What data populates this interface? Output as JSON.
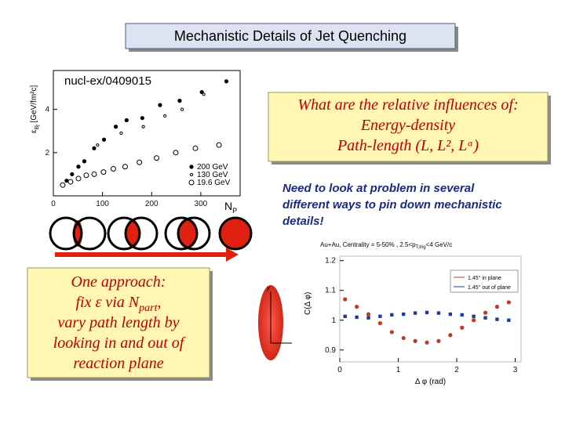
{
  "title": "Mechanistic Details of Jet Quenching",
  "question": {
    "lines": [
      "What are the relative influences of:",
      "Energy-density",
      "Path-length (L, L², Lᵅ)"
    ]
  },
  "note": {
    "lines": [
      "Need to look at problem in several",
      "different ways to pin down mechanistic",
      "details!"
    ]
  },
  "approach": {
    "heading": "One approach:",
    "fix": {
      "text": "fix ε via N",
      "sub": "part",
      "end": ","
    },
    "lines": [
      "vary path length by",
      "looking in and out of",
      "reaction plane"
    ]
  },
  "plots": [
    {
      "type": "scatter",
      "annotation": "nucl-ex/0409015",
      "y_label": {
        "symbol": "ε",
        "sub": "Bj",
        "unit": " [GeV/fm²c]"
      },
      "x_label": {
        "symbol": "N",
        "sub": "P"
      },
      "xlim": [
        0,
        380
      ],
      "ylim": [
        0,
        5.8
      ],
      "xticks": [
        0,
        100,
        200,
        300
      ],
      "yticks": [
        2,
        4
      ],
      "series": [
        {
          "name": "200 GeV",
          "color": "#000000",
          "marker": "filled",
          "x": [
            27,
            38,
            51,
            63,
            83,
            103,
            127,
            149,
            181,
            217,
            257,
            302,
            352
          ],
          "values": [
            0.7,
            1.0,
            1.35,
            1.6,
            2.2,
            2.6,
            3.2,
            3.5,
            3.6,
            4.2,
            4.4,
            4.8,
            5.3
          ]
        },
        {
          "name": "130 GeV",
          "color": "#000000",
          "marker": "small",
          "x": [
            90,
            138,
            183,
            227,
            262,
            306
          ],
          "values": [
            2.35,
            2.9,
            3.2,
            3.7,
            4.0,
            4.7
          ]
        },
        {
          "name": "19.6 GeV",
          "color": "#000000",
          "marker": "open",
          "x": [
            19,
            35,
            51,
            67,
            83,
            102,
            122,
            146,
            175,
            210,
            249,
            289,
            337
          ],
          "values": [
            0.5,
            0.65,
            0.8,
            0.95,
            1.0,
            1.1,
            1.25,
            1.35,
            1.55,
            1.75,
            2.0,
            2.2,
            2.35
          ]
        }
      ]
    },
    {
      "type": "scatter",
      "title": {
        "text": "Au+Au, Centrality = 5-50% , 2.5<p",
        "sub": "T,trig",
        "end": "<4 GeV/c"
      },
      "y_label": "C(Δ φ)",
      "x_label": "Δ φ (rad)",
      "xlim": [
        0,
        3.1
      ],
      "ylim": [
        0.86,
        1.215
      ],
      "xticks": [
        0,
        1,
        2,
        3
      ],
      "yticks": [
        0.9,
        1,
        1.1,
        1.2
      ],
      "series": [
        {
          "name": "1.45° in plane",
          "color": "#c0392b",
          "marker": "filled",
          "x": [
            0.09,
            0.29,
            0.49,
            0.69,
            0.89,
            1.09,
            1.29,
            1.49,
            1.69,
            1.89,
            2.09,
            2.29,
            2.49,
            2.69,
            2.89
          ],
          "values": [
            1.07,
            1.045,
            1.02,
            0.99,
            0.96,
            0.94,
            0.93,
            0.925,
            0.93,
            0.95,
            0.975,
            1.0,
            1.025,
            1.045,
            1.06
          ]
        },
        {
          "name": "1.45° out of plane",
          "color": "#1f3c9c",
          "marker": "square",
          "x": [
            0.09,
            0.29,
            0.49,
            0.69,
            0.89,
            1.09,
            1.29,
            1.49,
            1.69,
            1.89,
            2.09,
            2.29,
            2.49,
            2.69,
            2.89
          ],
          "values": [
            1.013,
            1.01,
            1.008,
            1.013,
            1.018,
            1.02,
            1.024,
            1.026,
            1.024,
            1.02,
            1.018,
            1.013,
            1.008,
            1.003,
            1.0
          ]
        }
      ]
    }
  ]
}
